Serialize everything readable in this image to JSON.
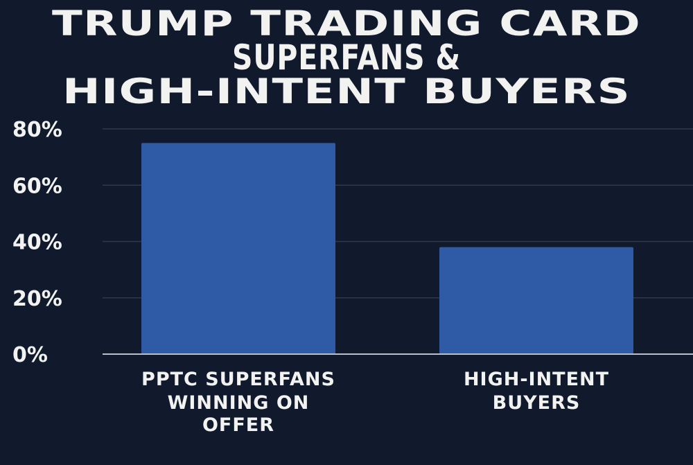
{
  "chart_data": {
    "type": "bar",
    "title_lines": [
      "TRUMP TRADING CARD",
      "SUPERFANS &",
      "HIGH-INTENT BUYERS"
    ],
    "categories": [
      [
        "PPTC SUPERFANS",
        "WINNING ON",
        "OFFER"
      ],
      [
        "HIGH-INTENT",
        "BUYERS"
      ]
    ],
    "values": [
      75,
      38
    ],
    "ylim": [
      0,
      80
    ],
    "yticks": [
      0,
      20,
      40,
      60,
      80
    ],
    "ytick_labels": [
      "0%",
      "20%",
      "40%",
      "60%",
      "80%"
    ],
    "grid": true,
    "colors": {
      "background": "#111a2d",
      "bar": "#2f5aa6",
      "grid": "#2d3850",
      "axis": "#b9c0cc",
      "text": "#f2f2f0"
    }
  }
}
